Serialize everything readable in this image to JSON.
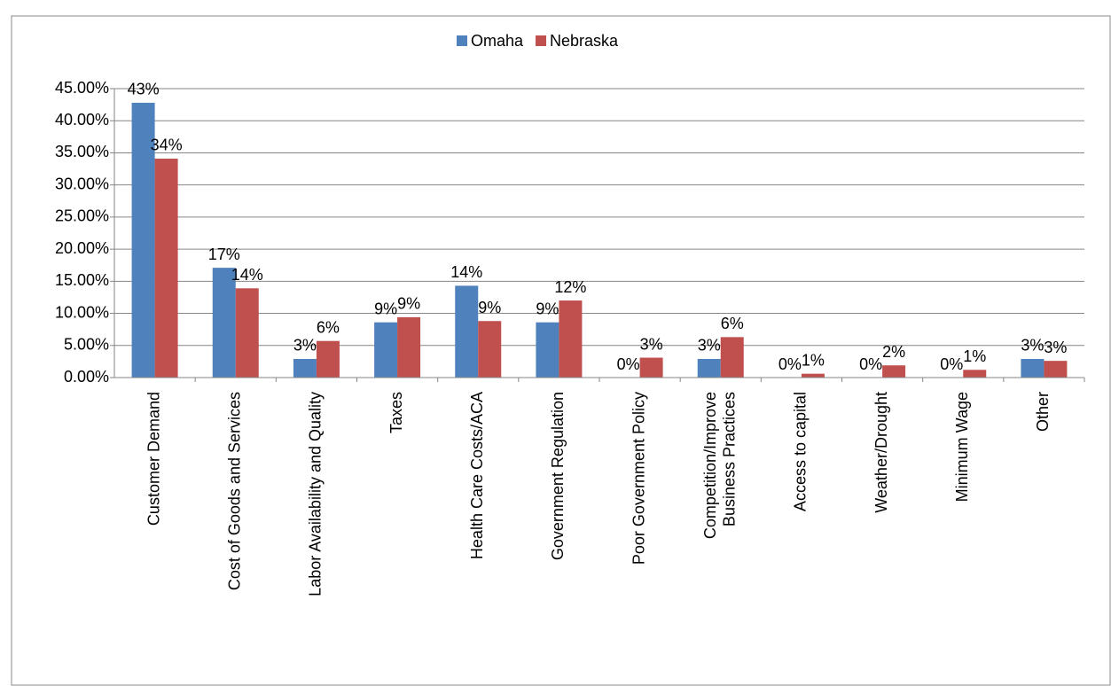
{
  "chart_data": {
    "type": "bar",
    "categories": [
      "Customer Demand",
      "Cost of Goods and Services",
      "Labor Availability and Quality",
      "Taxes",
      "Health Care Costs/ACA",
      "Government Regulation",
      "Poor Government Policy",
      "Competition/Improve\nBusiness Practices",
      "Access to capital",
      "Weather/Drought",
      "Minimum Wage",
      "Other"
    ],
    "series": [
      {
        "name": "Omaha",
        "color": "#4f81bd",
        "values": [
          42.8,
          17.1,
          2.9,
          8.6,
          14.3,
          8.6,
          0,
          2.9,
          0,
          0,
          0,
          2.9
        ],
        "value_labels": [
          "43%",
          "17%",
          "3%",
          "9%",
          "14%",
          "9%",
          "0%",
          "3%",
          "0%",
          "0%",
          "0%",
          "3%"
        ]
      },
      {
        "name": "Nebraska",
        "color": "#c0504d",
        "values": [
          34.1,
          13.9,
          5.7,
          9.4,
          8.8,
          12.0,
          3.1,
          6.3,
          0.6,
          1.9,
          1.2,
          2.6
        ],
        "value_labels": [
          "34%",
          "14%",
          "6%",
          "9%",
          "9%",
          "12%",
          "3%",
          "6%",
          "1%",
          "2%",
          "1%",
          "3%"
        ]
      }
    ],
    "ylim": [
      0,
      45
    ],
    "yticks": [
      {
        "value": 0,
        "label": "0.00%"
      },
      {
        "value": 5,
        "label": "5.00%"
      },
      {
        "value": 10,
        "label": "10.00%"
      },
      {
        "value": 15,
        "label": "15.00%"
      },
      {
        "value": 20,
        "label": "20.00%"
      },
      {
        "value": 25,
        "label": "25.00%"
      },
      {
        "value": 30,
        "label": "30.00%"
      },
      {
        "value": 35,
        "label": "35.00%"
      },
      {
        "value": 40,
        "label": "40.00%"
      },
      {
        "value": 45,
        "label": "45.00%"
      }
    ],
    "grid": true,
    "legend": "top"
  }
}
